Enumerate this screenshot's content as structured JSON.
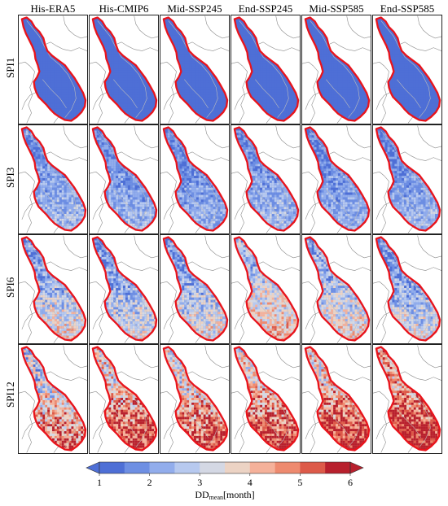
{
  "columns": [
    "His-ERA5",
    "His-CMIP6",
    "Mid-SSP245",
    "End-SSP245",
    "Mid-SSP585",
    "End-SSP585"
  ],
  "rows": [
    "SPI1",
    "SPI3",
    "SPI6",
    "SPI12"
  ],
  "colorbar": {
    "ticks": [
      "1",
      "2",
      "3",
      "4",
      "5",
      "6"
    ],
    "label_main": "DD",
    "label_sub": "mean",
    "label_unit": "[month]",
    "min": 1,
    "max": 6,
    "colors": [
      "#4e6fd6",
      "#6e8fe3",
      "#92adec",
      "#b7c9ef",
      "#d4d8e4",
      "#ecd3c4",
      "#f5b19a",
      "#ee8a6f",
      "#dd5a49",
      "#b8202d"
    ]
  },
  "map_style": {
    "basin_outline_color": "#e8141c",
    "country_border_color": "#8a8a8a",
    "river_color": "#bdbdbd"
  },
  "panel_means": [
    [
      1.1,
      1.1,
      1.1,
      1.1,
      1.1,
      1.1
    ],
    [
      2.2,
      2.1,
      2.0,
      2.2,
      2.0,
      2.1
    ],
    [
      2.8,
      2.6,
      2.7,
      3.3,
      2.9,
      2.5
    ],
    [
      3.9,
      4.6,
      4.4,
      4.7,
      4.8,
      5.2
    ]
  ]
}
